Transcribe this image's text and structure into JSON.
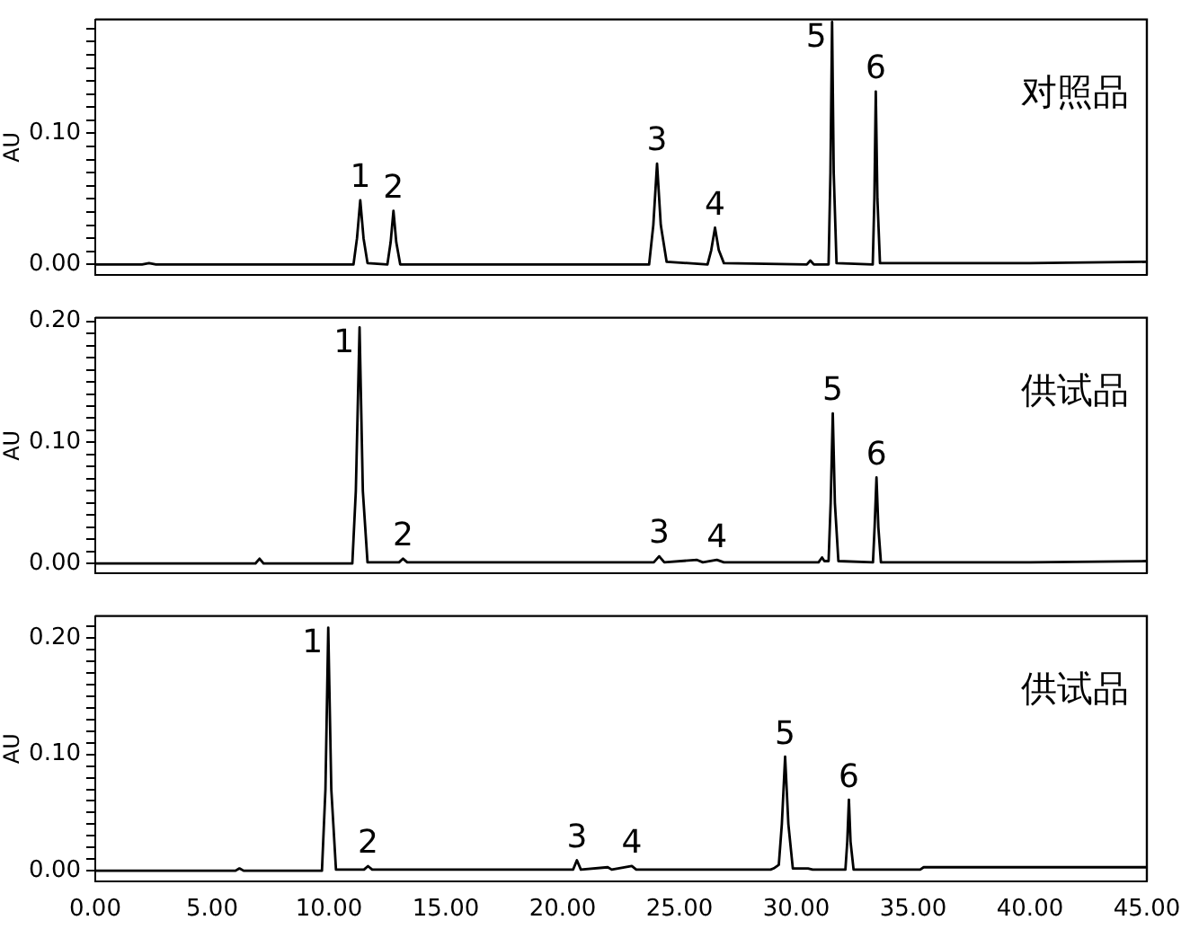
{
  "chart_data": [
    {
      "type": "line",
      "title": "对照品",
      "ylabel": "AU",
      "tick_labels": "y",
      "grid": false,
      "legend": false,
      "xlim": [
        0,
        45
      ],
      "ylim": [
        -0.008,
        0.187
      ],
      "yticks": [
        {
          "value": 0,
          "label": "0.00"
        },
        {
          "value": 0.01,
          "label": null
        },
        {
          "value": 0.02,
          "label": null
        },
        {
          "value": 0.03,
          "label": null
        },
        {
          "value": 0.04,
          "label": null
        },
        {
          "value": 0.05,
          "label": null
        },
        {
          "value": 0.06,
          "label": null
        },
        {
          "value": 0.07,
          "label": null
        },
        {
          "value": 0.08,
          "label": null
        },
        {
          "value": 0.09,
          "label": null
        },
        {
          "value": 0.1,
          "label": "0.10"
        },
        {
          "value": 0.11,
          "label": null
        },
        {
          "value": 0.12,
          "label": null
        },
        {
          "value": 0.13,
          "label": null
        },
        {
          "value": 0.14,
          "label": null
        },
        {
          "value": 0.15,
          "label": null
        },
        {
          "value": 0.16,
          "label": null
        },
        {
          "value": 0.17,
          "label": null
        },
        {
          "value": 0.18,
          "label": null
        }
      ],
      "series": [
        {
          "color": "#000000",
          "x": [
            0,
            2.0,
            2.3,
            2.6,
            11.05,
            11.2,
            11.34,
            11.48,
            11.65,
            12.5,
            12.64,
            12.76,
            12.88,
            13.05,
            23.7,
            23.88,
            24.04,
            24.2,
            24.45,
            26.2,
            26.36,
            26.52,
            26.68,
            26.9,
            30.45,
            30.6,
            30.75,
            31.38,
            31.46,
            31.53,
            31.6,
            31.72,
            33.27,
            33.34,
            33.4,
            33.47,
            33.58,
            40,
            45
          ],
          "values": [
            0,
            0,
            0.001,
            0,
            0,
            0.02,
            0.049,
            0.02,
            0.001,
            0,
            0.017,
            0.041,
            0.017,
            0,
            0,
            0.03,
            0.077,
            0.03,
            0.002,
            0,
            0.011,
            0.028,
            0.011,
            0.001,
            0,
            0.003,
            0,
            0,
            0.07,
            0.185,
            0.07,
            0.001,
            0,
            0.05,
            0.132,
            0.05,
            0.001,
            0.001,
            0.002
          ]
        }
      ],
      "annotations": [
        {
          "text": "1",
          "x": 11.34,
          "y": 0.049
        },
        {
          "text": "2",
          "x": 12.76,
          "y": 0.041
        },
        {
          "text": "3",
          "x": 24.04,
          "y": 0.077
        },
        {
          "text": "4",
          "x": 26.52,
          "y": 0.028
        },
        {
          "text": "5",
          "x": 31.53,
          "y": 0.185
        },
        {
          "text": "6",
          "x": 33.4,
          "y": 0.132
        }
      ]
    },
    {
      "type": "line",
      "title": "供试品",
      "ylabel": "AU",
      "tick_labels": "y",
      "grid": false,
      "legend": false,
      "xlim": [
        0,
        45
      ],
      "ylim": [
        -0.008,
        0.203
      ],
      "yticks": [
        {
          "value": 0,
          "label": "0.00"
        },
        {
          "value": 0.01,
          "label": null
        },
        {
          "value": 0.02,
          "label": null
        },
        {
          "value": 0.03,
          "label": null
        },
        {
          "value": 0.04,
          "label": null
        },
        {
          "value": 0.05,
          "label": null
        },
        {
          "value": 0.06,
          "label": null
        },
        {
          "value": 0.07,
          "label": null
        },
        {
          "value": 0.08,
          "label": null
        },
        {
          "value": 0.09,
          "label": null
        },
        {
          "value": 0.1,
          "label": "0.10"
        },
        {
          "value": 0.11,
          "label": null
        },
        {
          "value": 0.12,
          "label": null
        },
        {
          "value": 0.13,
          "label": null
        },
        {
          "value": 0.14,
          "label": null
        },
        {
          "value": 0.15,
          "label": null
        },
        {
          "value": 0.16,
          "label": null
        },
        {
          "value": 0.17,
          "label": null
        },
        {
          "value": 0.18,
          "label": null
        },
        {
          "value": 0.19,
          "label": null
        },
        {
          "value": 0.2,
          "label": "0.20"
        }
      ],
      "series": [
        {
          "color": "#000000",
          "x": [
            0,
            6.85,
            7.03,
            7.2,
            11.0,
            11.15,
            11.31,
            11.45,
            11.65,
            13.0,
            13.17,
            13.35,
            23.9,
            24.13,
            24.35,
            25.75,
            26.0,
            26.6,
            26.9,
            30.95,
            31.1,
            31.2,
            31.38,
            31.47,
            31.56,
            31.65,
            31.8,
            33.28,
            33.35,
            33.43,
            33.51,
            33.62,
            40,
            45
          ],
          "values": [
            0,
            0,
            0.004,
            0,
            0,
            0.06,
            0.195,
            0.06,
            0.001,
            0.001,
            0.004,
            0.001,
            0.001,
            0.006,
            0.001,
            0.003,
            0.001,
            0.003,
            0.001,
            0.001,
            0.005,
            0.002,
            0.002,
            0.05,
            0.124,
            0.05,
            0.002,
            0.001,
            0.03,
            0.071,
            0.03,
            0.001,
            0.001,
            0.002
          ]
        }
      ],
      "annotations": [
        {
          "text": "1",
          "x": 11.31,
          "y": 0.195
        },
        {
          "text": "2",
          "x": 13.17,
          "y": 0.004
        },
        {
          "text": "3",
          "x": 24.13,
          "y": 0.006
        },
        {
          "text": "4",
          "x": 26.6,
          "y": 0.003
        },
        {
          "text": "5",
          "x": 31.56,
          "y": 0.124
        },
        {
          "text": "6",
          "x": 33.43,
          "y": 0.071
        }
      ]
    },
    {
      "type": "line",
      "title": "供试品",
      "ylabel": "AU",
      "grid": false,
      "legend": false,
      "xlim": [
        0,
        45
      ],
      "ylim": [
        -0.009,
        0.219
      ],
      "xticks": [
        {
          "value": 0,
          "label": "0.00"
        },
        {
          "value": 5,
          "label": "5.00"
        },
        {
          "value": 10,
          "label": "10.00"
        },
        {
          "value": 15,
          "label": "15.00"
        },
        {
          "value": 20,
          "label": "20.00"
        },
        {
          "value": 25,
          "label": "25.00"
        },
        {
          "value": 30,
          "label": "30.00"
        },
        {
          "value": 35,
          "label": "35.00"
        },
        {
          "value": 40,
          "label": "40.00"
        },
        {
          "value": 45,
          "label": "45.00"
        }
      ],
      "yticks": [
        {
          "value": 0,
          "label": "0.00"
        },
        {
          "value": 0.01,
          "label": null
        },
        {
          "value": 0.02,
          "label": null
        },
        {
          "value": 0.03,
          "label": null
        },
        {
          "value": 0.04,
          "label": null
        },
        {
          "value": 0.05,
          "label": null
        },
        {
          "value": 0.06,
          "label": null
        },
        {
          "value": 0.07,
          "label": null
        },
        {
          "value": 0.08,
          "label": null
        },
        {
          "value": 0.09,
          "label": null
        },
        {
          "value": 0.1,
          "label": "0.10"
        },
        {
          "value": 0.11,
          "label": null
        },
        {
          "value": 0.12,
          "label": null
        },
        {
          "value": 0.13,
          "label": null
        },
        {
          "value": 0.14,
          "label": null
        },
        {
          "value": 0.15,
          "label": null
        },
        {
          "value": 0.16,
          "label": null
        },
        {
          "value": 0.17,
          "label": null
        },
        {
          "value": 0.18,
          "label": null
        },
        {
          "value": 0.19,
          "label": null
        },
        {
          "value": 0.2,
          "label": "0.20"
        },
        {
          "value": 0.21,
          "label": null
        }
      ],
      "series": [
        {
          "color": "#000000",
          "x": [
            0,
            6.0,
            6.17,
            6.35,
            9.7,
            9.85,
            9.97,
            10.1,
            10.3,
            11.5,
            11.67,
            11.85,
            20.45,
            20.61,
            20.78,
            21.93,
            22.1,
            22.96,
            23.15,
            28.9,
            29.03,
            29.25,
            29.38,
            29.52,
            29.66,
            29.85,
            30.5,
            30.7,
            32.1,
            32.18,
            32.25,
            32.32,
            32.45,
            35.3,
            35.45,
            45
          ],
          "values": [
            0,
            0,
            0.002,
            0,
            0,
            0.07,
            0.209,
            0.07,
            0.001,
            0.001,
            0.004,
            0.001,
            0.001,
            0.009,
            0.001,
            0.003,
            0.001,
            0.004,
            0.001,
            0.001,
            0.002,
            0.005,
            0.04,
            0.098,
            0.04,
            0.002,
            0.002,
            0.001,
            0.001,
            0.025,
            0.061,
            0.025,
            0.001,
            0.001,
            0.003,
            0.003
          ]
        }
      ],
      "annotations": [
        {
          "text": "1",
          "x": 9.97,
          "y": 0.209
        },
        {
          "text": "2",
          "x": 11.67,
          "y": 0.004
        },
        {
          "text": "3",
          "x": 20.61,
          "y": 0.009
        },
        {
          "text": "4",
          "x": 22.96,
          "y": 0.004
        },
        {
          "text": "5",
          "x": 29.52,
          "y": 0.098
        },
        {
          "text": "6",
          "x": 32.25,
          "y": 0.061
        }
      ]
    }
  ]
}
